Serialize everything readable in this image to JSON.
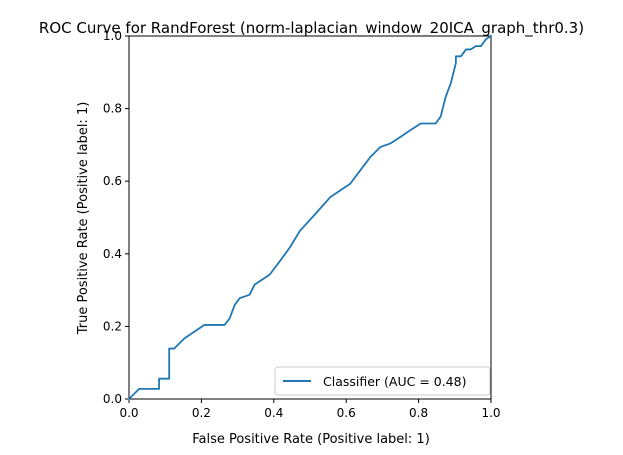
{
  "chart_data": {
    "type": "line",
    "title": "ROC Curve for RandForest (norm-laplacian_window_20ICA_graph_thr0.3)",
    "xlabel": "False Positive Rate (Positive label: 1)",
    "ylabel": "True Positive Rate (Positive label: 1)",
    "xlim": [
      0,
      1
    ],
    "ylim": [
      0,
      1
    ],
    "xticks": [
      "0.0",
      "0.2",
      "0.4",
      "0.6",
      "0.8",
      "1.0"
    ],
    "yticks": [
      "0.0",
      "0.2",
      "0.4",
      "0.6",
      "0.8",
      "1.0"
    ],
    "grid": false,
    "legend_position": "lower-right",
    "series": [
      {
        "name": "Classifier (AUC = 0.48)",
        "color": "#1f77b4",
        "x": [
          0.0,
          0.0,
          0.028,
          0.028,
          0.083,
          0.083,
          0.111,
          0.111,
          0.125,
          0.153,
          0.208,
          0.264,
          0.278,
          0.292,
          0.306,
          0.333,
          0.347,
          0.389,
          0.417,
          0.444,
          0.472,
          0.514,
          0.556,
          0.611,
          0.639,
          0.667,
          0.694,
          0.722,
          0.75,
          0.778,
          0.806,
          0.833,
          0.847,
          0.861,
          0.875,
          0.889,
          0.903,
          0.903,
          0.917,
          0.931,
          0.944,
          0.958,
          0.972,
          0.986,
          1.0
        ],
        "y": [
          0.0,
          0.0,
          0.028,
          0.028,
          0.028,
          0.056,
          0.056,
          0.139,
          0.139,
          0.167,
          0.204,
          0.204,
          0.222,
          0.259,
          0.278,
          0.287,
          0.315,
          0.343,
          0.38,
          0.417,
          0.463,
          0.509,
          0.556,
          0.593,
          0.63,
          0.667,
          0.694,
          0.704,
          0.722,
          0.741,
          0.759,
          0.759,
          0.759,
          0.778,
          0.833,
          0.87,
          0.926,
          0.944,
          0.944,
          0.963,
          0.963,
          0.972,
          0.972,
          0.991,
          1.0
        ]
      }
    ]
  }
}
